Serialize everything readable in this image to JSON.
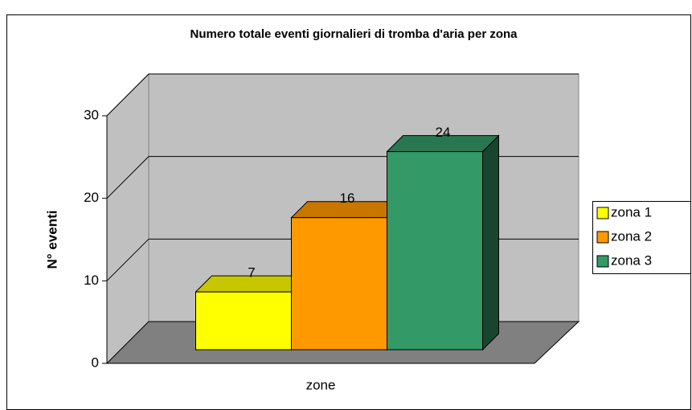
{
  "chart_data": {
    "type": "bar3d",
    "title": "Numero totale eventi giornalieri di tromba d'aria per zona",
    "y_label": "N° eventi",
    "categories": [
      "zone"
    ],
    "series": [
      {
        "name": "zona 1",
        "color": "#ffff00",
        "values": [
          7
        ]
      },
      {
        "name": "zona 2",
        "color": "#ff9900",
        "values": [
          16
        ]
      },
      {
        "name": "zona 3",
        "color": "#339966",
        "values": [
          24
        ]
      }
    ],
    "ylim": [
      0,
      30
    ],
    "yticks": [
      0,
      10,
      20,
      30
    ],
    "grid": true,
    "legend": "right"
  }
}
